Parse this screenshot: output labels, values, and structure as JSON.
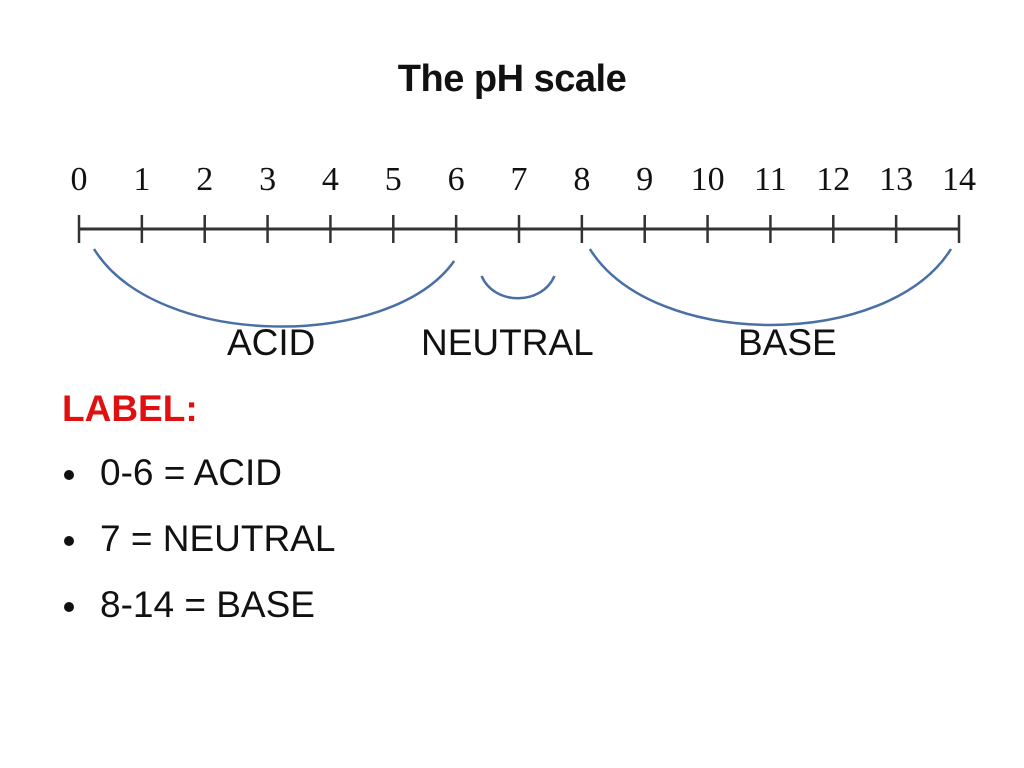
{
  "title": "The pH scale",
  "scale": {
    "min": 0,
    "max": 14,
    "tick_labels": [
      "0",
      "1",
      "2",
      "3",
      "4",
      "5",
      "6",
      "7",
      "8",
      "9",
      "10",
      "11",
      "12",
      "13",
      "14"
    ],
    "bracket_color": "#4a6fa5",
    "regions": [
      {
        "label": "ACID",
        "from": 0,
        "to": 6
      },
      {
        "label": "NEUTRAL",
        "from": 6.5,
        "to": 7.5
      },
      {
        "label": "BASE",
        "from": 8,
        "to": 14
      }
    ]
  },
  "legend": {
    "heading": "LABEL:",
    "heading_color": "#e01010",
    "items": [
      "0-6 = ACID",
      "7 = NEUTRAL",
      "8-14 = BASE"
    ]
  }
}
